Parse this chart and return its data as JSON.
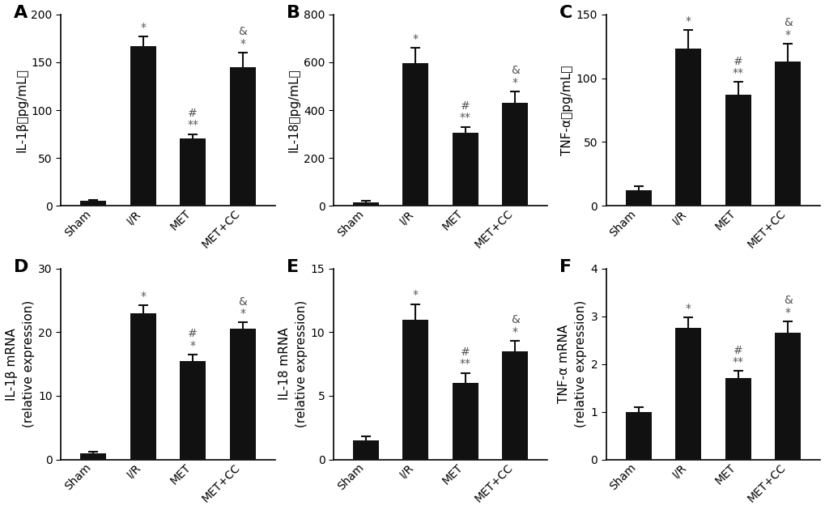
{
  "panels": [
    {
      "label": "A",
      "ylabel_line1": "IL-1β（pg/mL）",
      "ylabel_line2": null,
      "ylim": [
        0,
        200
      ],
      "yticks": [
        0,
        50,
        100,
        150,
        200
      ],
      "values": [
        5,
        167,
        70,
        145
      ],
      "errors": [
        1,
        10,
        5,
        15
      ],
      "annots": [
        {
          "bar": 1,
          "sym1": "*",
          "sym2": null
        },
        {
          "bar": 2,
          "sym1": "#",
          "sym2": "**"
        },
        {
          "bar": 3,
          "sym1": "&",
          "sym2": "*"
        }
      ]
    },
    {
      "label": "B",
      "ylabel_line1": "IL-18（pg/mL）",
      "ylabel_line2": null,
      "ylim": [
        0,
        800
      ],
      "yticks": [
        0,
        200,
        400,
        600,
        800
      ],
      "values": [
        15,
        595,
        305,
        430
      ],
      "errors": [
        5,
        65,
        25,
        48
      ],
      "annots": [
        {
          "bar": 1,
          "sym1": "*",
          "sym2": null
        },
        {
          "bar": 2,
          "sym1": "#",
          "sym2": "**"
        },
        {
          "bar": 3,
          "sym1": "&",
          "sym2": "*"
        }
      ]
    },
    {
      "label": "C",
      "ylabel_line1": "TNF-α（pg/mL）",
      "ylabel_line2": null,
      "ylim": [
        0,
        150
      ],
      "yticks": [
        0,
        50,
        100,
        150
      ],
      "values": [
        12,
        123,
        87,
        113
      ],
      "errors": [
        3,
        15,
        10,
        14
      ],
      "annots": [
        {
          "bar": 1,
          "sym1": "*",
          "sym2": null
        },
        {
          "bar": 2,
          "sym1": "#",
          "sym2": "**"
        },
        {
          "bar": 3,
          "sym1": "&",
          "sym2": "*"
        }
      ]
    },
    {
      "label": "D",
      "ylabel_line1": "IL-1β mRNA",
      "ylabel_line2": "(relative expression)",
      "ylim": [
        0,
        30
      ],
      "yticks": [
        0,
        10,
        20,
        30
      ],
      "values": [
        1,
        23,
        15.5,
        20.5
      ],
      "errors": [
        0.2,
        1.2,
        1.0,
        1.0
      ],
      "annots": [
        {
          "bar": 1,
          "sym1": "*",
          "sym2": null
        },
        {
          "bar": 2,
          "sym1": "#",
          "sym2": "*"
        },
        {
          "bar": 3,
          "sym1": "&",
          "sym2": "*"
        }
      ]
    },
    {
      "label": "E",
      "ylabel_line1": "IL-18 mRNA",
      "ylabel_line2": "(relative expression)",
      "ylim": [
        0,
        15
      ],
      "yticks": [
        0,
        5,
        10,
        15
      ],
      "values": [
        1.5,
        11,
        6,
        8.5
      ],
      "errors": [
        0.3,
        1.2,
        0.8,
        0.8
      ],
      "annots": [
        {
          "bar": 1,
          "sym1": "*",
          "sym2": null
        },
        {
          "bar": 2,
          "sym1": "#",
          "sym2": "**"
        },
        {
          "bar": 3,
          "sym1": "&",
          "sym2": "*"
        }
      ]
    },
    {
      "label": "F",
      "ylabel_line1": "TNF-α mRNA",
      "ylabel_line2": "(relative expression)",
      "ylim": [
        0,
        4
      ],
      "yticks": [
        0,
        1,
        2,
        3,
        4
      ],
      "values": [
        1.0,
        2.75,
        1.7,
        2.65
      ],
      "errors": [
        0.1,
        0.22,
        0.15,
        0.24
      ],
      "annots": [
        {
          "bar": 1,
          "sym1": "*",
          "sym2": null
        },
        {
          "bar": 2,
          "sym1": "#",
          "sym2": "**"
        },
        {
          "bar": 3,
          "sym1": "&",
          "sym2": "*"
        }
      ]
    }
  ],
  "categories": [
    "Sham",
    "I/R",
    "MET",
    "MET+CC"
  ],
  "bar_color": "#111111",
  "bar_width": 0.52,
  "error_color": "#111111",
  "background_color": "#ffffff",
  "annot_color": "#555555",
  "annot_fontsize": 10,
  "ylabel_fontsize": 11,
  "tick_fontsize": 10,
  "panel_label_fontsize": 16
}
